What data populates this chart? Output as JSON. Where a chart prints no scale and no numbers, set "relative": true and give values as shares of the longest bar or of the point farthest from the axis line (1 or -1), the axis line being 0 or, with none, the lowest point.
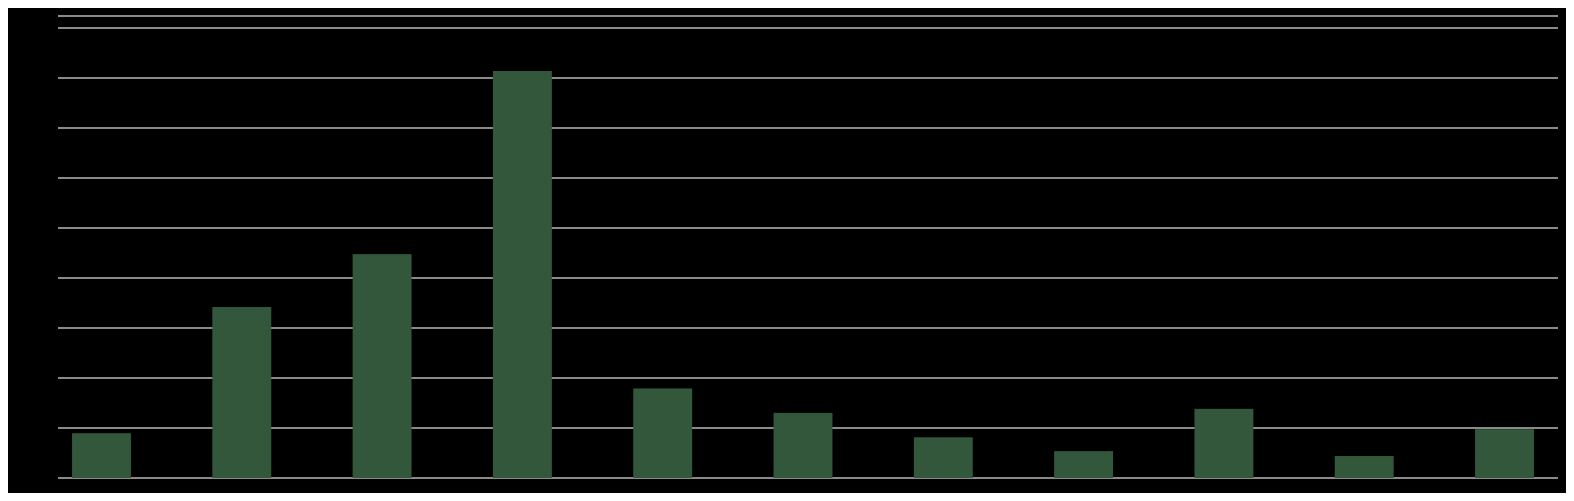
{
  "chart_data": {
    "type": "bar",
    "relative": true,
    "grid": true,
    "categories": [
      null,
      null,
      null,
      null,
      null,
      null,
      null,
      null,
      null,
      null,
      null
    ],
    "values": [
      0.11,
      0.42,
      0.55,
      1,
      0.22,
      0.16,
      0.1,
      0.066,
      0.17,
      0.054,
      0.12
    ],
    "color": "#33573a"
  }
}
